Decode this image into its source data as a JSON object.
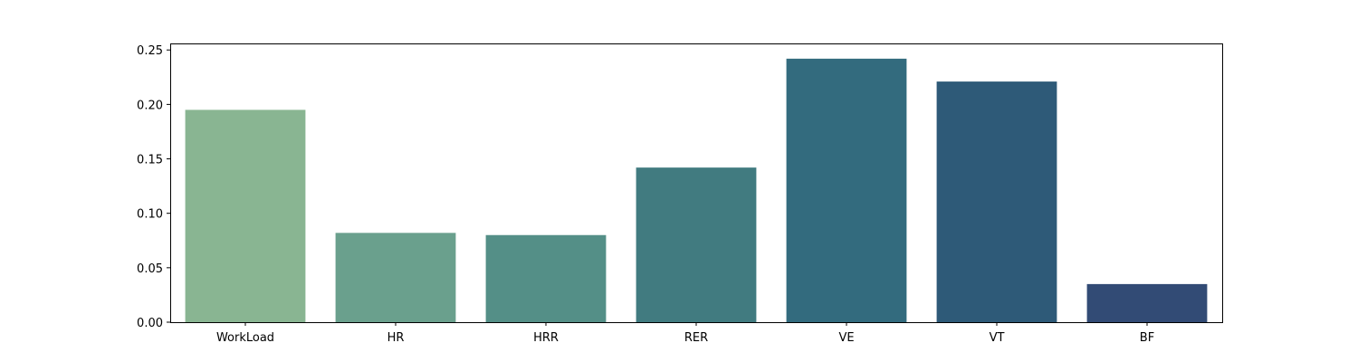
{
  "chart_data": {
    "type": "bar",
    "title": "",
    "xlabel": "",
    "ylabel": "",
    "categories": [
      "WorkLoad",
      "HR",
      "HRR",
      "RER",
      "VE",
      "VT",
      "BF"
    ],
    "values": [
      0.195,
      0.082,
      0.08,
      0.142,
      0.242,
      0.221,
      0.035
    ],
    "colors": [
      "#89b592",
      "#6aa08d",
      "#548f87",
      "#417b80",
      "#336b7e",
      "#2e5a78",
      "#324b75"
    ],
    "ylim": [
      0,
      0.256
    ],
    "yticks": [
      0.0,
      0.05,
      0.1,
      0.15,
      0.2,
      0.25
    ],
    "ytick_labels": [
      "0.00",
      "0.05",
      "0.10",
      "0.15",
      "0.20",
      "0.25"
    ],
    "grid": false,
    "legend": "none"
  }
}
